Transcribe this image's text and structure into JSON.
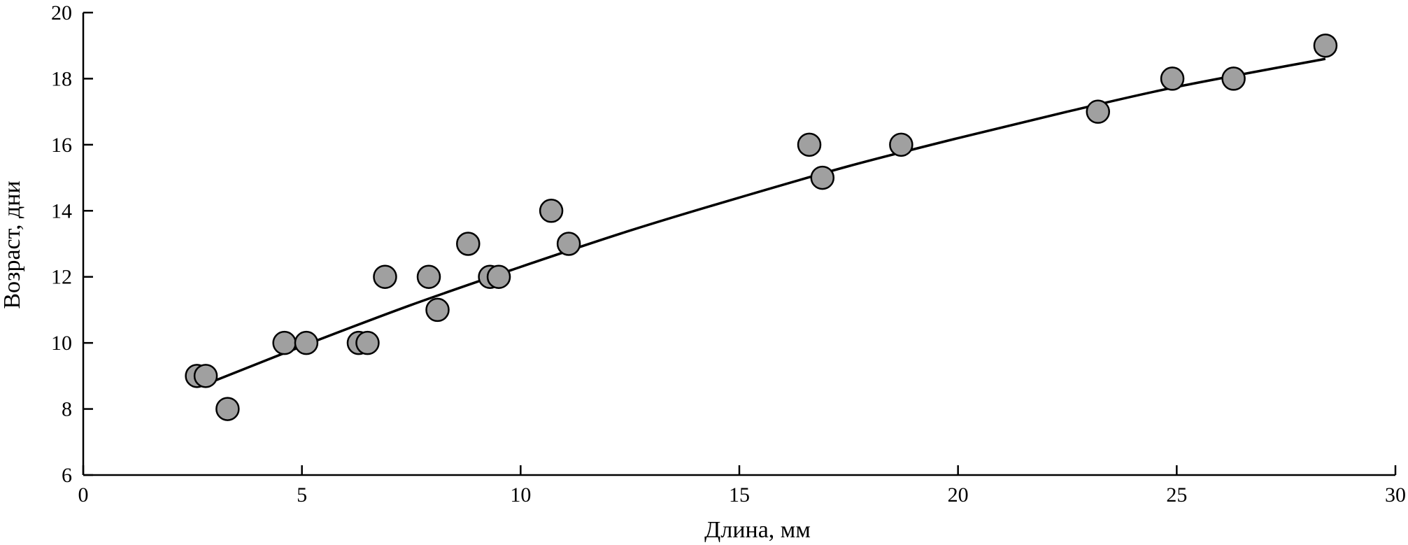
{
  "chart_data": {
    "type": "scatter",
    "title": "",
    "xlabel": "Длина, мм",
    "ylabel": "Возраст, дни",
    "xlim": [
      0,
      30
    ],
    "ylim": [
      6,
      20
    ],
    "xticks": [
      "0",
      "5",
      "10",
      "15",
      "20",
      "25",
      "30"
    ],
    "yticks": [
      "6",
      "8",
      "10",
      "12",
      "14",
      "16",
      "18",
      "20"
    ],
    "grid": false,
    "legend": "none",
    "marker_fill": "#a0a0a0",
    "marker_edge": "#000000",
    "points": [
      {
        "x": 2.6,
        "y": 9
      },
      {
        "x": 2.8,
        "y": 9
      },
      {
        "x": 3.3,
        "y": 8
      },
      {
        "x": 4.6,
        "y": 10
      },
      {
        "x": 5.1,
        "y": 10
      },
      {
        "x": 6.3,
        "y": 10
      },
      {
        "x": 6.5,
        "y": 10
      },
      {
        "x": 6.9,
        "y": 12
      },
      {
        "x": 7.9,
        "y": 12
      },
      {
        "x": 8.1,
        "y": 11
      },
      {
        "x": 8.8,
        "y": 13
      },
      {
        "x": 9.3,
        "y": 12
      },
      {
        "x": 9.5,
        "y": 12
      },
      {
        "x": 10.7,
        "y": 14
      },
      {
        "x": 11.1,
        "y": 13
      },
      {
        "x": 16.6,
        "y": 16
      },
      {
        "x": 16.9,
        "y": 15
      },
      {
        "x": 18.7,
        "y": 16
      },
      {
        "x": 23.2,
        "y": 17
      },
      {
        "x": 24.9,
        "y": 18
      },
      {
        "x": 26.3,
        "y": 18
      },
      {
        "x": 28.4,
        "y": 19
      }
    ],
    "trend_line": {
      "type": "curve",
      "x": [
        2.8,
        5,
        7.5,
        10,
        12.5,
        15,
        17.5,
        20,
        22.5,
        25,
        28.4
      ],
      "y": [
        8.75,
        9.9,
        11.15,
        12.3,
        13.4,
        14.4,
        15.35,
        16.2,
        17.0,
        17.75,
        18.6
      ]
    }
  }
}
